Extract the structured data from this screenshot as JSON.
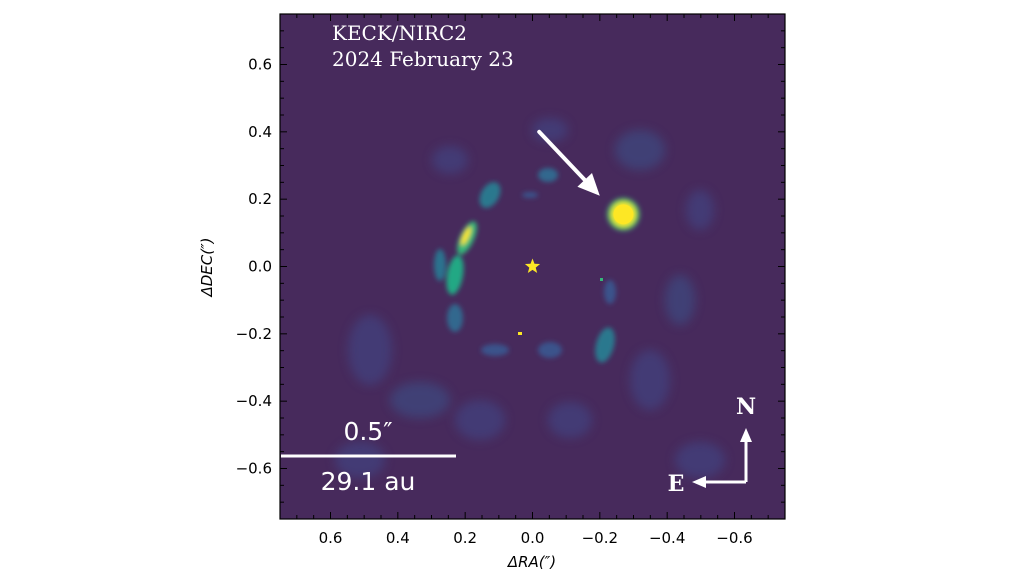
{
  "figure": {
    "instrument": "KECK/NIRC2",
    "date": "2024 February 23",
    "scale_angle": "0.5″",
    "scale_distance": "29.1 au",
    "compass_north": "N",
    "compass_east": "E",
    "xlabel": "ΔRA(″)",
    "ylabel": "ΔDEC(″)"
  },
  "colors": {
    "background": "#472a5c",
    "companion_core": "#fde725",
    "companion_halo": "#22a884",
    "star_marker": "#fde725",
    "annotation": "#ffffff"
  },
  "chart_data": {
    "type": "heatmap",
    "title": "",
    "xlabel": "ΔRA(″)",
    "ylabel": "ΔDEC(″)",
    "xlim": [
      0.75,
      -0.75
    ],
    "ylim": [
      -0.75,
      0.75
    ],
    "x_ticks": [
      0.6,
      0.4,
      0.2,
      0.0,
      -0.2,
      -0.4,
      -0.6
    ],
    "x_tick_labels": [
      "0.6",
      "0.4",
      "0.2",
      "0.0",
      "−0.2",
      "−0.4",
      "−0.6"
    ],
    "y_ticks": [
      0.6,
      0.4,
      0.2,
      0.0,
      -0.2,
      -0.4,
      -0.6
    ],
    "y_tick_labels": [
      "0.6",
      "0.4",
      "0.2",
      "0.0",
      "−0.2",
      "−0.4",
      "−0.6"
    ],
    "star_position": [
      0.0,
      0.0
    ],
    "companion_position": [
      -0.27,
      0.155
    ],
    "arrow_from": [
      -0.02,
      0.4
    ],
    "arrow_to": [
      -0.2,
      0.21
    ],
    "scale_bar_arcsec": 0.5,
    "grid": false
  }
}
